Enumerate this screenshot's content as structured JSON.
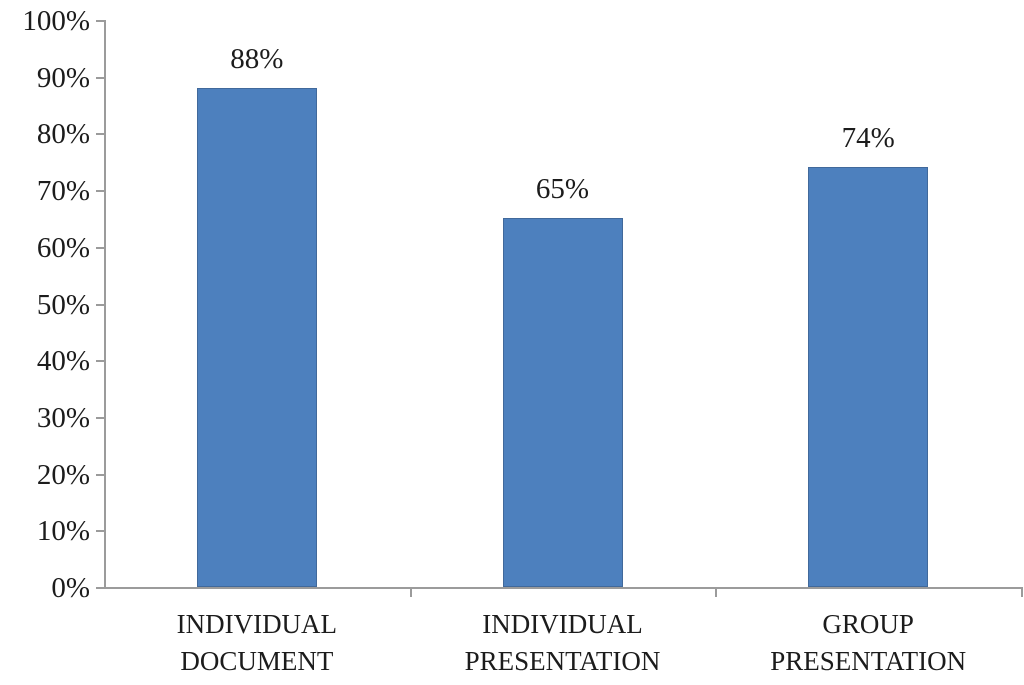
{
  "chart_data": {
    "type": "bar",
    "categories": [
      [
        "INDIVIDUAL",
        "DOCUMENT"
      ],
      [
        "INDIVIDUAL",
        "PRESENTATION"
      ],
      [
        "GROUP",
        "PRESENTATION"
      ]
    ],
    "values": [
      88,
      65,
      74
    ],
    "value_labels": [
      "88%",
      "65%",
      "74%"
    ],
    "ytick_labels": [
      "0%",
      "10%",
      "20%",
      "30%",
      "40%",
      "50%",
      "60%",
      "70%",
      "80%",
      "90%",
      "100%"
    ],
    "ytick_values": [
      0,
      10,
      20,
      30,
      40,
      50,
      60,
      70,
      80,
      90,
      100
    ],
    "ylim": [
      0,
      100
    ],
    "xlabel": "",
    "ylabel": "",
    "legend": "none",
    "grid": "off",
    "colors": {
      "bar_fill": "#4d80be",
      "bar_border": "#41699b",
      "axis": "#9b9b9b",
      "text": "#1c1c1c",
      "background": "#ffffff"
    }
  }
}
